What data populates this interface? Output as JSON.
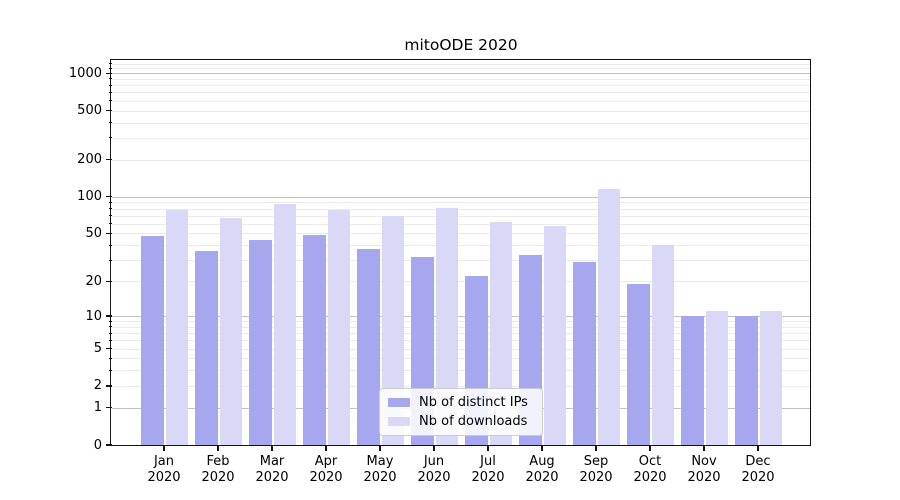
{
  "title": "mitoODE 2020",
  "colors": {
    "ips_bar": "#a7a7ef",
    "downloads_bar": "#d9d9f7",
    "grid_major": "#c2c2c2",
    "grid_minor": "#ebebeb",
    "spine": "#141414",
    "legend_border": "#cccccc",
    "text": "#000000",
    "background": "#ffffff"
  },
  "chart_data": {
    "type": "bar",
    "title": "mitoODE 2020",
    "categories": [
      "Jan 2020",
      "Feb 2020",
      "Mar 2020",
      "Apr 2020",
      "May 2020",
      "Jun 2020",
      "Jul 2020",
      "Aug 2020",
      "Sep 2020",
      "Oct 2020",
      "Nov 2020",
      "Dec 2020"
    ],
    "months": [
      "Jan",
      "Feb",
      "Mar",
      "Apr",
      "May",
      "Jun",
      "Jul",
      "Aug",
      "Sep",
      "Oct",
      "Nov",
      "Dec"
    ],
    "year_label": "2020",
    "series": [
      {
        "name": "Nb of distinct IPs",
        "color": "#a7a7ef",
        "values": [
          48,
          36,
          44,
          49,
          37,
          32,
          22,
          33,
          29,
          19,
          10,
          10
        ]
      },
      {
        "name": "Nb of downloads",
        "color": "#d9d9f7",
        "values": [
          78,
          67,
          87,
          78,
          70,
          81,
          62,
          58,
          115,
          40,
          11,
          11
        ]
      }
    ],
    "xlabel": "",
    "ylabel": "",
    "y_scale": "log1p",
    "ylim": [
      0,
      1280
    ],
    "y_ticks": [
      1000,
      500,
      200,
      100,
      50,
      20,
      10,
      5,
      2,
      1,
      0
    ],
    "y_major_gridlines": [
      1,
      10,
      100,
      1000
    ],
    "y_minor_gridlines": [
      2,
      3,
      4,
      5,
      6,
      7,
      8,
      9,
      20,
      30,
      40,
      50,
      60,
      70,
      80,
      90,
      200,
      300,
      400,
      500,
      600,
      700,
      800,
      900,
      1100,
      1200
    ],
    "grid": true,
    "legend_position": "lower center"
  }
}
